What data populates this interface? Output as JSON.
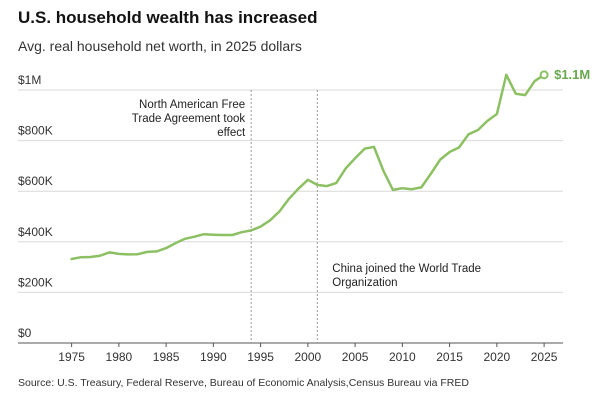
{
  "title": "U.S. household wealth has increased",
  "subtitle": "Avg. real household net worth, in 2025 dollars",
  "source": "Source: U.S. Treasury, Federal Reserve, Bureau of Economic Analysis,Census Bureau via FRED",
  "colors": {
    "line": "#8cc063",
    "endlabel": "#6aa84f",
    "grid": "#d9d9d9",
    "baseline": "#555555",
    "annotation_line": "#999999"
  },
  "chart_data": {
    "type": "line",
    "title": "U.S. household wealth has increased",
    "subtitle": "Avg. real household net worth, in 2025 dollars",
    "xlabel": "",
    "ylabel": "",
    "xlim": [
      1972.5,
      2027
    ],
    "ylim": [
      0,
      1000000
    ],
    "x_ticks": [
      1975,
      1980,
      1985,
      1990,
      1995,
      2000,
      2005,
      2010,
      2015,
      2020,
      2025
    ],
    "y_ticks": [
      0,
      200000,
      400000,
      600000,
      800000,
      1000000
    ],
    "y_tick_labels": [
      "$0",
      "$200K",
      "$400K",
      "$600K",
      "$800K",
      "$1M"
    ],
    "grid": true,
    "series": [
      {
        "name": "Avg. real household net worth",
        "x": [
          1975,
          1976,
          1977,
          1978,
          1979,
          1980,
          1981,
          1982,
          1983,
          1984,
          1985,
          1986,
          1987,
          1988,
          1989,
          1990,
          1991,
          1992,
          1993,
          1994,
          1995,
          1996,
          1997,
          1998,
          1999,
          2000,
          2001,
          2002,
          2003,
          2004,
          2005,
          2006,
          2007,
          2008,
          2009,
          2010,
          2011,
          2012,
          2013,
          2014,
          2015,
          2016,
          2017,
          2018,
          2019,
          2020,
          2021,
          2022,
          2023,
          2024,
          2025
        ],
        "y": [
          332000,
          339000,
          340000,
          345000,
          358000,
          352000,
          350000,
          351000,
          360000,
          362000,
          375000,
          395000,
          412000,
          420000,
          430000,
          428000,
          427000,
          427000,
          438000,
          445000,
          460000,
          485000,
          520000,
          570000,
          610000,
          645000,
          625000,
          620000,
          632000,
          690000,
          730000,
          768000,
          775000,
          680000,
          605000,
          612000,
          608000,
          615000,
          668000,
          725000,
          755000,
          773000,
          825000,
          842000,
          878000,
          905000,
          1060000,
          985000,
          980000,
          1035000,
          1060000
        ]
      }
    ],
    "end_label": "$1.1M",
    "annotations": [
      {
        "x": 1994,
        "text_lines": [
          "North American Free",
          "Trade Agreement took",
          "effect"
        ]
      },
      {
        "x": 2001,
        "text_lines": [
          "China joined the World Trade",
          "Organization"
        ]
      }
    ]
  }
}
